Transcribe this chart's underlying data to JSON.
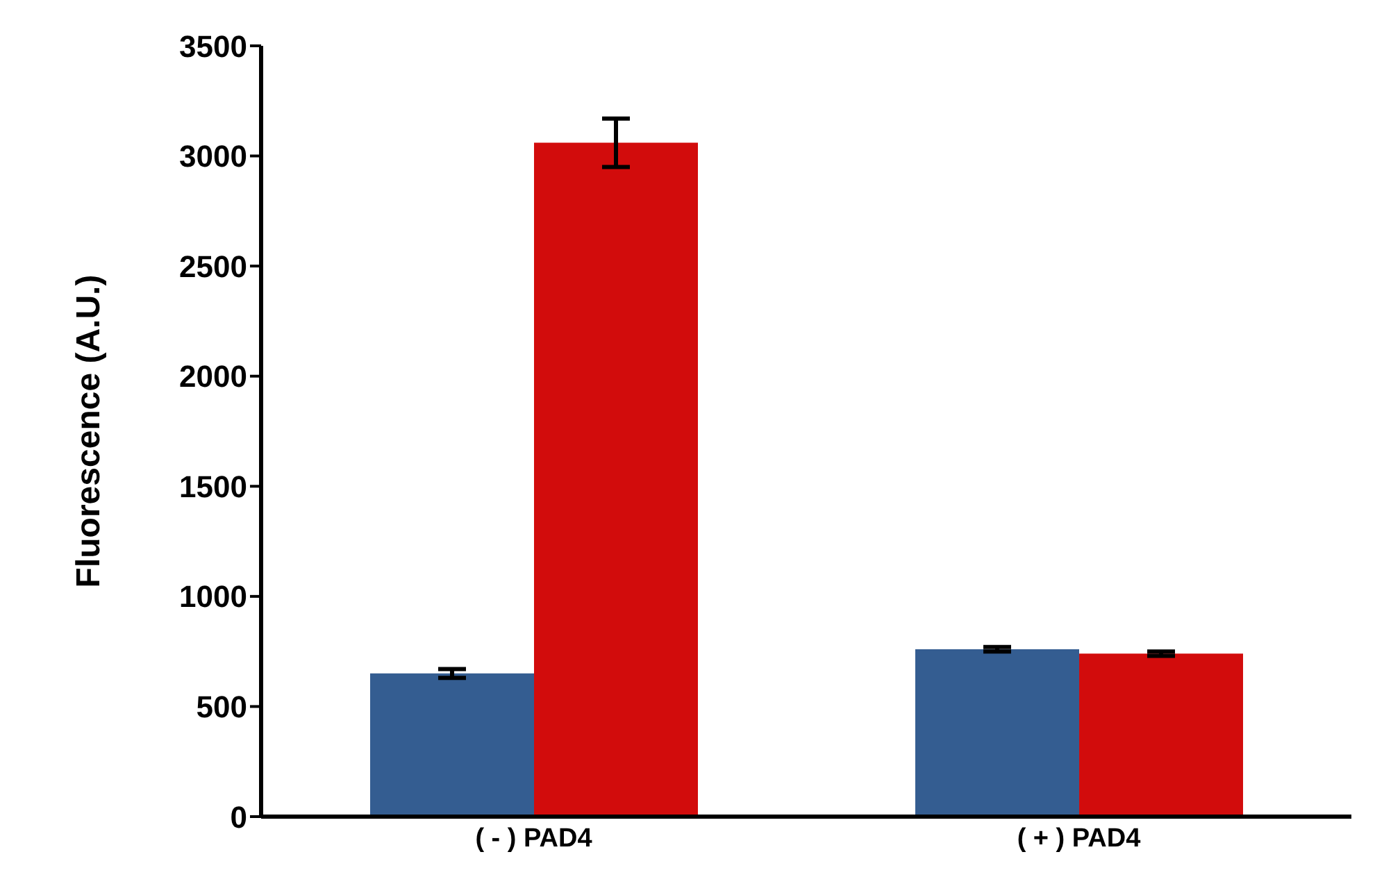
{
  "chart_data": {
    "type": "bar",
    "ylabel": "Fluorescence (A.U.)",
    "categories": [
      "( - ) PAD4",
      "( + ) PAD4"
    ],
    "series": [
      {
        "color": "#345d91",
        "values": [
          650,
          760
        ],
        "errors": [
          20,
          10
        ]
      },
      {
        "color": "#d20c0c",
        "values": [
          3060,
          740
        ],
        "errors": [
          110,
          10
        ]
      }
    ],
    "ylim": [
      0,
      3500
    ],
    "yticks": [
      0,
      500,
      1000,
      1500,
      2000,
      2500,
      3000,
      3500
    ],
    "grid": false,
    "legend": false
  }
}
